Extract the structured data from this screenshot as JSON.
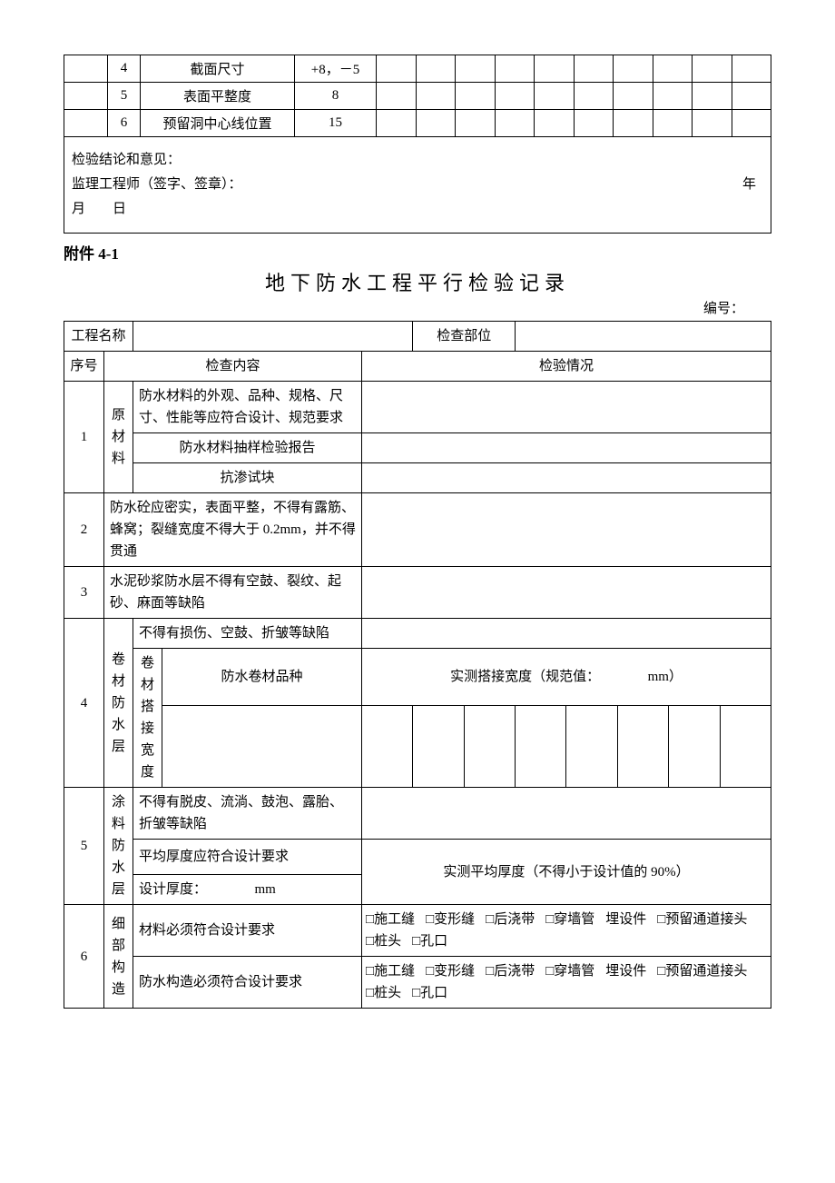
{
  "top_table": {
    "rows": [
      {
        "no": "4",
        "item": "截面尺寸",
        "tolerance": "+8，－5"
      },
      {
        "no": "5",
        "item": "表面平整度",
        "tolerance": "8"
      },
      {
        "no": "6",
        "item": "预留洞中心线位置",
        "tolerance": "15"
      }
    ],
    "measure_cols": 10
  },
  "conclusion": {
    "line1": "检验结论和意见：",
    "line2": "监理工程师（签字、签章）：",
    "date_year": "年",
    "date_md": "月　　日"
  },
  "attachment_label": "附件 4-1",
  "title": "地下防水工程平行检验记录",
  "serial_label": "编号：",
  "header": {
    "project_name_label": "工程名称",
    "inspect_part_label": "检查部位",
    "seq_label": "序号",
    "content_label": "检查内容",
    "result_label": "检验情况"
  },
  "rows": {
    "r1": {
      "no": "1",
      "cat": "原材料",
      "a": "防水材料的外观、品种、规格、尺寸、性能等应符合设计、规范要求",
      "b": "防水材料抽样检验报告",
      "c": "抗渗试块"
    },
    "r2": {
      "no": "2",
      "text": "防水砼应密实，表面平整，不得有露筋、蜂窝；裂缝宽度不得大于 0.2mm，并不得贯通"
    },
    "r3": {
      "no": "3",
      "text": "水泥砂浆防水层不得有空鼓、裂纹、起砂、麻面等缺陷"
    },
    "r4": {
      "no": "4",
      "cat": "卷材防水层",
      "a": "不得有损伤、空鼓、折皱等缺陷",
      "sublabel": "卷材搭接宽度",
      "sub_a": "防水卷材品种",
      "result_a": "实测搭接宽度（规范值：　　　　mm）"
    },
    "r5": {
      "no": "5",
      "cat": "涂料防水层",
      "a": "不得有脱皮、流淌、鼓泡、露胎、折皱等缺陷",
      "b": "平均厚度应符合设计要求",
      "c": "设计厚度：　　　　mm",
      "result_b": "实测平均厚度（不得小于设计值的 90%）"
    },
    "r6": {
      "no": "6",
      "cat": "细部构造",
      "a": "材料必须符合设计要求",
      "b": "防水构造必须符合设计要求",
      "checks": [
        "□施工缝",
        "□变形缝",
        "□后浇带",
        "□穿墙管",
        "埋设件",
        "□预留通道接头",
        "□桩头",
        "□孔口"
      ]
    }
  }
}
